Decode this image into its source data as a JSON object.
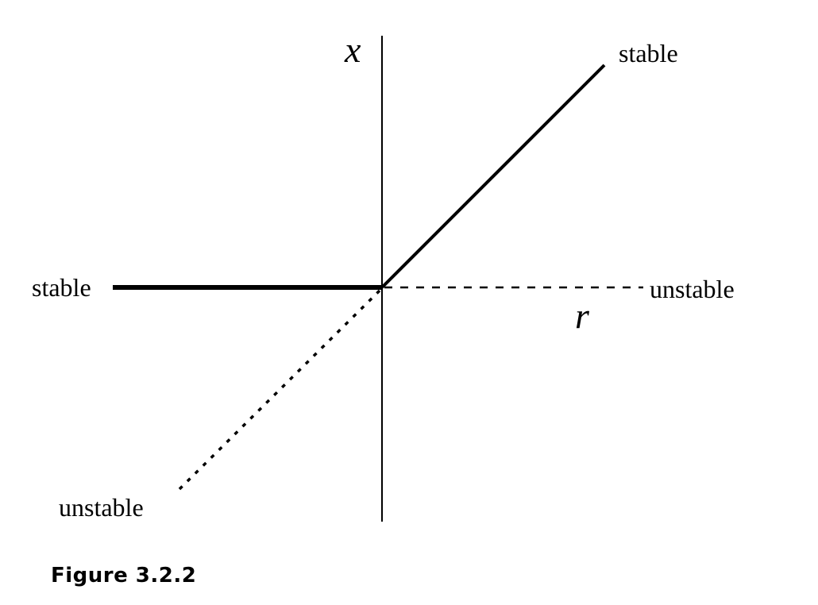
{
  "figure": {
    "caption": "Figure 3.2.2",
    "vertical_axis_label": "x",
    "horizontal_axis_label": "r",
    "branch_labels": {
      "upper_right": "stable",
      "left_horizontal": "stable",
      "right_horizontal": "unstable",
      "lower_left": "unstable"
    }
  },
  "branches": [
    {
      "name": "x = 0, r < 0",
      "stability": "stable",
      "style": "solid"
    },
    {
      "name": "x = 0, r > 0",
      "stability": "unstable",
      "style": "dashed"
    },
    {
      "name": "x = r, r > 0",
      "stability": "stable",
      "style": "solid"
    },
    {
      "name": "x = r, r < 0",
      "stability": "unstable",
      "style": "dotted"
    }
  ],
  "colors": {
    "ink": "#000000",
    "background": "#ffffff"
  }
}
